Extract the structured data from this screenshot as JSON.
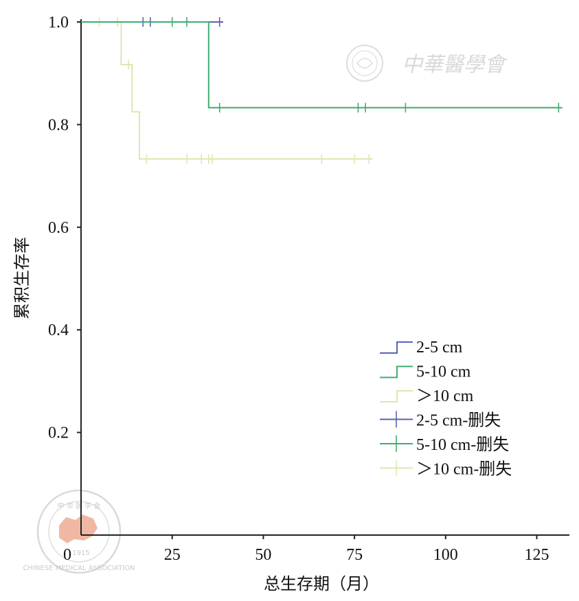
{
  "watermark_top": "中華醫學會",
  "watermark_seal": {
    "top_text": "中 华 医 学 会",
    "year": "1915",
    "ring_text": "CHINESE MEDICAL ASSOCIATION"
  },
  "chart_data": {
    "type": "line",
    "subtype": "kaplan-meier step",
    "title": "",
    "xlabel": "总生存期（月）",
    "ylabel": "累积生存率",
    "xlim": [
      0,
      133
    ],
    "ylim": [
      0,
      1.0
    ],
    "x_ticks": [
      0,
      25,
      50,
      75,
      100,
      125
    ],
    "x_tick_labels": [
      "0",
      "25",
      "50",
      "75",
      "100",
      "125"
    ],
    "y_ticks": [
      0.2,
      0.4,
      0.6,
      0.8,
      1.0
    ],
    "y_tick_labels": [
      "0.2",
      "0.4",
      "0.6",
      "0.8",
      "1.0"
    ],
    "grid": false,
    "legend_position": "bottom-right",
    "series": [
      {
        "name": "2-5 cm",
        "color": "#5b62b5",
        "steps": [
          [
            0,
            1.0
          ],
          [
            39,
            1.0
          ]
        ],
        "censor_name": "2-5 cm-删失",
        "censored": [
          [
            17,
            1.0
          ],
          [
            19,
            1.0
          ],
          [
            38,
            1.0
          ]
        ]
      },
      {
        "name": "5-10 cm",
        "color": "#3cae6e",
        "steps": [
          [
            0,
            1.0
          ],
          [
            35,
            1.0
          ],
          [
            35,
            0.833
          ],
          [
            132,
            0.833
          ]
        ],
        "censor_name": "5-10 cm-删失",
        "censored": [
          [
            25,
            1.0
          ],
          [
            29,
            1.0
          ],
          [
            38,
            0.833
          ],
          [
            76,
            0.833
          ],
          [
            78,
            0.833
          ],
          [
            89,
            0.833
          ],
          [
            131,
            0.833
          ]
        ]
      },
      {
        "name": "＞10 cm",
        "color": "#e2e4b0",
        "steps": [
          [
            0,
            1.0
          ],
          [
            11,
            1.0
          ],
          [
            11,
            0.917
          ],
          [
            14,
            0.917
          ],
          [
            14,
            0.825
          ],
          [
            16,
            0.825
          ],
          [
            16,
            0.733
          ],
          [
            80,
            0.733
          ]
        ],
        "censor_name": "＞10 cm-删失",
        "censored": [
          [
            5,
            1.0
          ],
          [
            10,
            1.0
          ],
          [
            13,
            0.917
          ],
          [
            18,
            0.733
          ],
          [
            29,
            0.733
          ],
          [
            33,
            0.733
          ],
          [
            35,
            0.733
          ],
          [
            36,
            0.733
          ],
          [
            66,
            0.733
          ],
          [
            75,
            0.733
          ],
          [
            79,
            0.733
          ]
        ]
      }
    ]
  }
}
